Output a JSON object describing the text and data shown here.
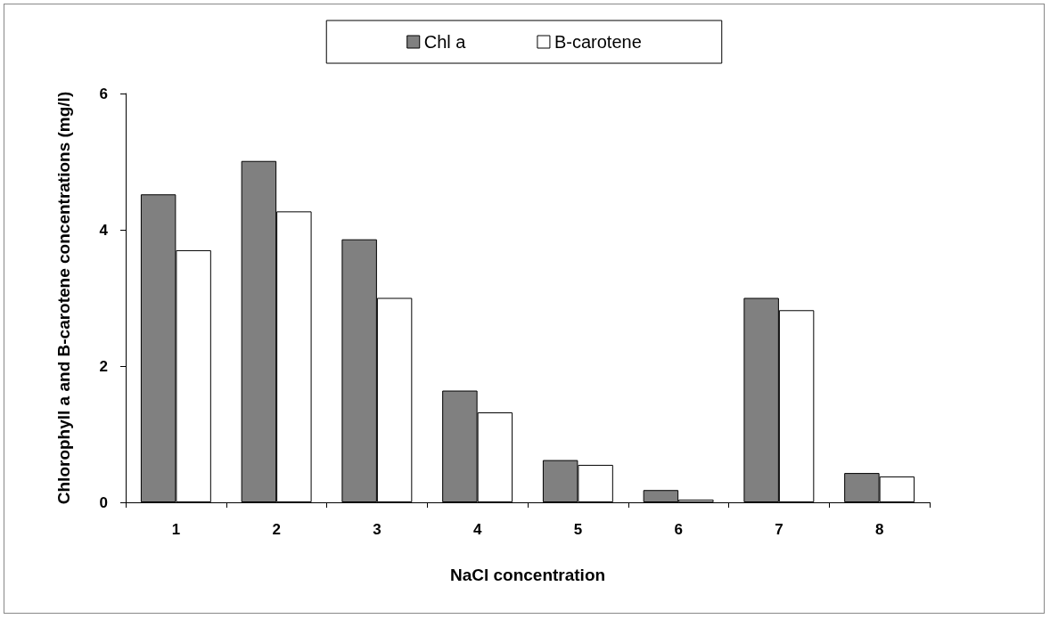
{
  "chart_data": {
    "type": "bar",
    "xlabel": "NaCl concentration",
    "ylabel": "Chlorophyll a and B-carotene concentrations (mg/l)",
    "categories": [
      "1",
      "2",
      "3",
      "4",
      "5",
      "6",
      "7",
      "8"
    ],
    "series": [
      {
        "name": "Chl a",
        "color": "#808080",
        "values": [
          4.52,
          5.01,
          3.86,
          1.64,
          0.62,
          0.18,
          3.0,
          0.43
        ]
      },
      {
        "name": "B-carotene",
        "color": "#ffffff",
        "values": [
          3.7,
          4.27,
          3.0,
          1.32,
          0.55,
          0.04,
          2.82,
          0.38
        ]
      }
    ],
    "ylim": [
      0,
      6
    ],
    "yticks": [
      0,
      2,
      4,
      6
    ],
    "grid": false,
    "legend": "top"
  }
}
